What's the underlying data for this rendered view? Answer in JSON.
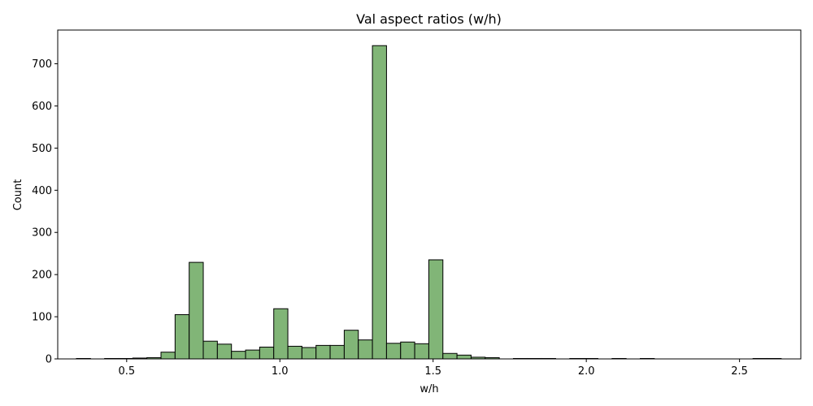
{
  "chart_data": {
    "type": "bar",
    "title": "Val aspect ratios (w/h)",
    "xlabel": "w/h",
    "ylabel": "Count",
    "xlim": [
      0.275,
      2.7
    ],
    "ylim": [
      0,
      780
    ],
    "x_ticks": [
      {
        "value": 0.5,
        "label": "0.5"
      },
      {
        "value": 1.0,
        "label": "1.0"
      },
      {
        "value": 1.5,
        "label": "1.5"
      },
      {
        "value": 2.0,
        "label": "2.0"
      },
      {
        "value": 2.5,
        "label": "2.5"
      }
    ],
    "y_ticks": [
      {
        "value": 0,
        "label": "0"
      },
      {
        "value": 100,
        "label": "100"
      },
      {
        "value": 200,
        "label": "200"
      },
      {
        "value": 300,
        "label": "300"
      },
      {
        "value": 400,
        "label": "400"
      },
      {
        "value": 500,
        "label": "500"
      },
      {
        "value": 600,
        "label": "600"
      },
      {
        "value": 700,
        "label": "700"
      }
    ],
    "bin_width": 0.046,
    "bins": [
      {
        "x0": 0.336,
        "count": 1
      },
      {
        "x0": 0.428,
        "count": 1
      },
      {
        "x0": 0.474,
        "count": 1
      },
      {
        "x0": 0.52,
        "count": 2
      },
      {
        "x0": 0.566,
        "count": 3
      },
      {
        "x0": 0.612,
        "count": 16
      },
      {
        "x0": 0.658,
        "count": 105
      },
      {
        "x0": 0.704,
        "count": 229
      },
      {
        "x0": 0.75,
        "count": 42
      },
      {
        "x0": 0.796,
        "count": 35
      },
      {
        "x0": 0.842,
        "count": 18
      },
      {
        "x0": 0.888,
        "count": 21
      },
      {
        "x0": 0.934,
        "count": 28
      },
      {
        "x0": 0.98,
        "count": 119
      },
      {
        "x0": 1.026,
        "count": 30
      },
      {
        "x0": 1.072,
        "count": 27
      },
      {
        "x0": 1.118,
        "count": 32
      },
      {
        "x0": 1.164,
        "count": 32
      },
      {
        "x0": 1.21,
        "count": 68
      },
      {
        "x0": 1.256,
        "count": 45
      },
      {
        "x0": 1.302,
        "count": 743
      },
      {
        "x0": 1.348,
        "count": 37
      },
      {
        "x0": 1.394,
        "count": 40
      },
      {
        "x0": 1.44,
        "count": 36
      },
      {
        "x0": 1.486,
        "count": 235
      },
      {
        "x0": 1.532,
        "count": 13
      },
      {
        "x0": 1.578,
        "count": 9
      },
      {
        "x0": 1.624,
        "count": 4
      },
      {
        "x0": 1.67,
        "count": 3
      },
      {
        "x0": 1.762,
        "count": 1
      },
      {
        "x0": 1.808,
        "count": 1
      },
      {
        "x0": 1.854,
        "count": 1
      },
      {
        "x0": 1.946,
        "count": 1
      },
      {
        "x0": 1.992,
        "count": 1
      },
      {
        "x0": 2.084,
        "count": 1
      },
      {
        "x0": 2.176,
        "count": 1
      },
      {
        "x0": 2.544,
        "count": 1
      },
      {
        "x0": 2.59,
        "count": 1
      }
    ],
    "bar_color": "#81b577",
    "edge_color": "#000000",
    "grid": false,
    "legend": "none"
  }
}
